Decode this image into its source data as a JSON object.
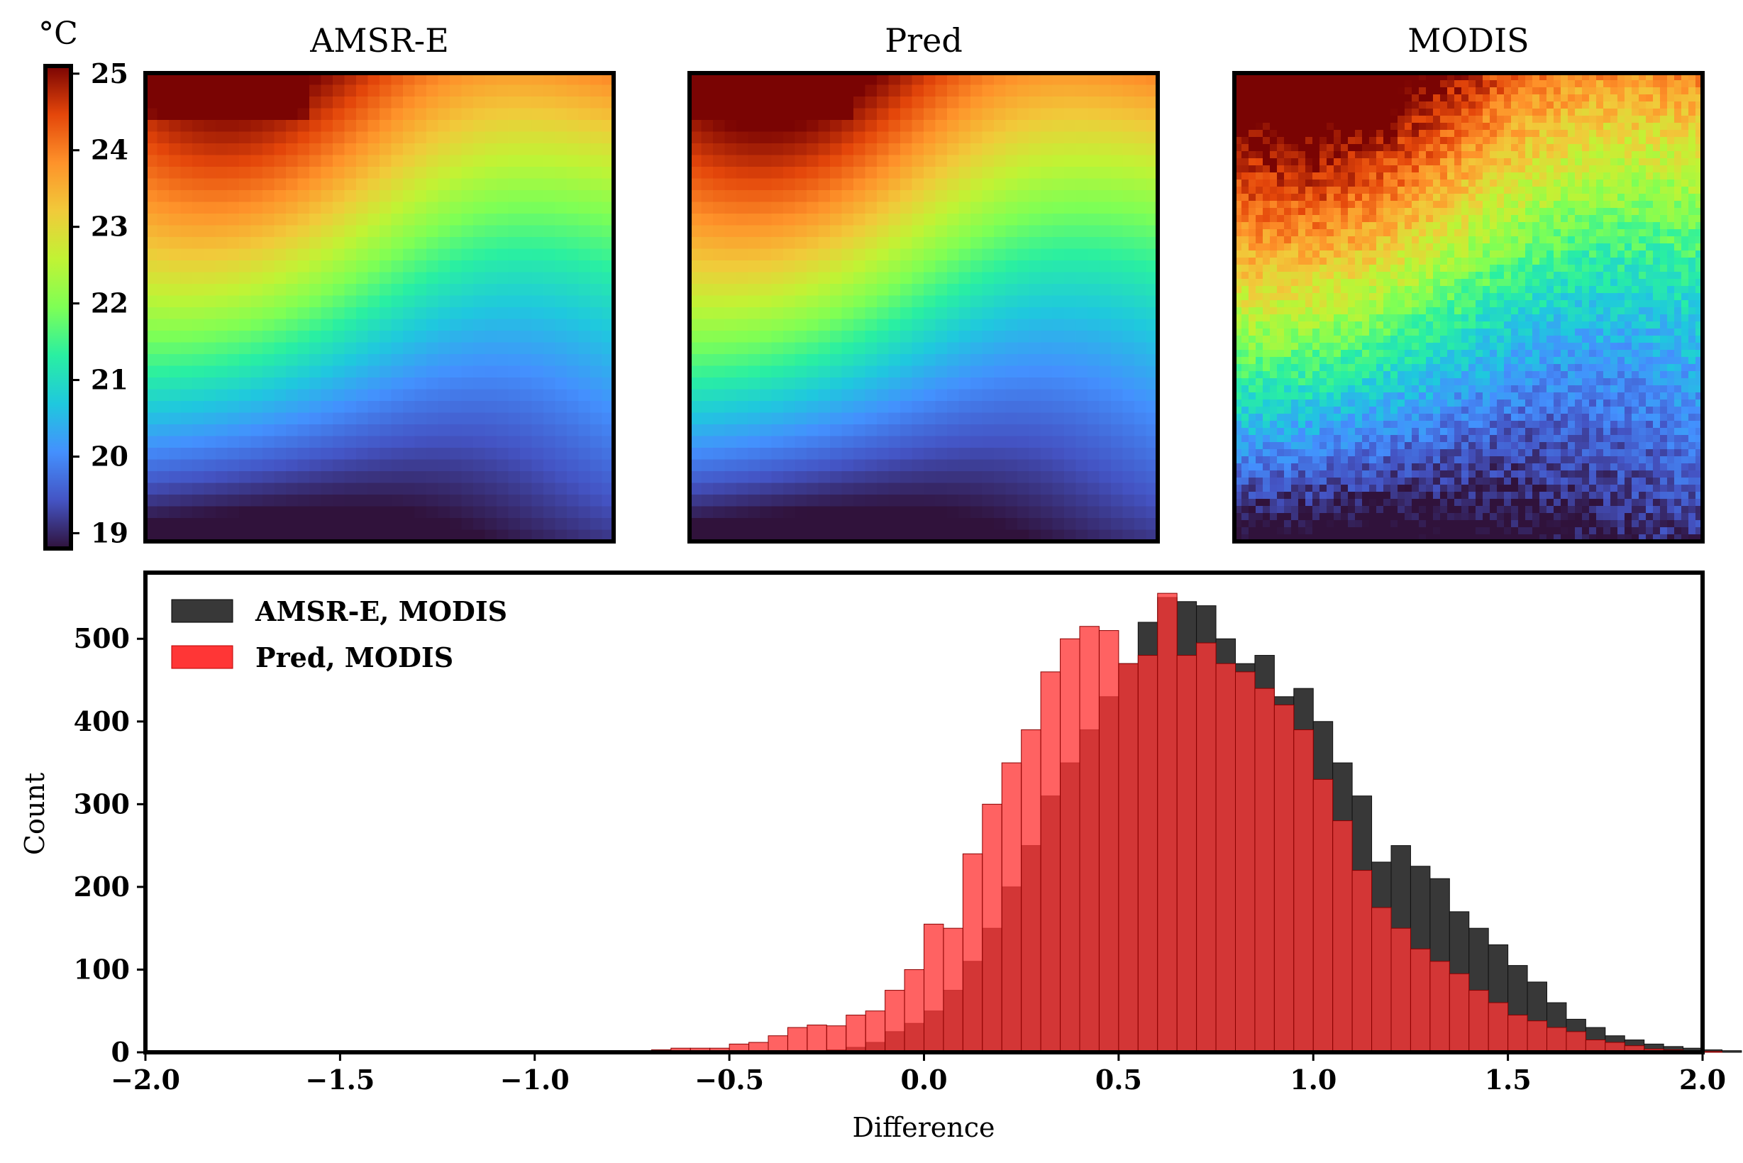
{
  "colorbar": {
    "unit": "°C",
    "ticks": [
      19,
      20,
      21,
      22,
      23,
      24,
      25
    ],
    "range": [
      18.8,
      25.1
    ],
    "colormap": "turbo"
  },
  "panels": [
    {
      "id": "amsr",
      "title": "AMSR-E",
      "noise": 0.0,
      "warm_boost": 0.0
    },
    {
      "id": "pred",
      "title": "Pred",
      "noise": 0.0,
      "warm_boost": 0.05
    },
    {
      "id": "modis",
      "title": "MODIS",
      "noise": 0.55,
      "warm_boost": 0.1
    }
  ],
  "chart_data": {
    "type": "bar",
    "subtype": "overlaid-histogram",
    "xlabel": "Difference",
    "ylabel": "Count",
    "xlim": [
      -2.0,
      2.0
    ],
    "ylim": [
      0,
      580
    ],
    "xticks": [
      "−2.0",
      "−1.5",
      "−1.0",
      "−0.5",
      "0.0",
      "0.5",
      "1.0",
      "1.5",
      "2.0"
    ],
    "xtick_values": [
      -2.0,
      -1.5,
      -1.0,
      -0.5,
      0.0,
      0.5,
      1.0,
      1.5,
      2.0
    ],
    "yticks": [
      0,
      100,
      200,
      300,
      400,
      500
    ],
    "legend": "top-left",
    "bin_width": 0.05,
    "series": [
      {
        "name": "AMSR-E, MODIS",
        "color": "#383838",
        "bin_start": -0.25,
        "values": [
          3,
          6,
          12,
          25,
          35,
          50,
          75,
          110,
          150,
          200,
          250,
          310,
          350,
          390,
          430,
          470,
          520,
          550,
          545,
          540,
          500,
          470,
          480,
          430,
          440,
          400,
          350,
          310,
          230,
          250,
          225,
          210,
          170,
          150,
          130,
          105,
          85,
          60,
          40,
          30,
          20,
          15,
          10,
          7,
          5,
          3,
          2
        ]
      },
      {
        "name": "Pred, MODIS",
        "color": "#ff3636",
        "bin_start": -0.75,
        "values": [
          1,
          3,
          5,
          5,
          5,
          10,
          12,
          20,
          30,
          33,
          32,
          45,
          50,
          75,
          100,
          155,
          150,
          240,
          300,
          350,
          390,
          460,
          500,
          515,
          510,
          470,
          480,
          555,
          480,
          495,
          470,
          460,
          440,
          420,
          390,
          330,
          280,
          220,
          175,
          150,
          125,
          110,
          95,
          75,
          60,
          45,
          38,
          30,
          25,
          15,
          12,
          8,
          4,
          3,
          2,
          1
        ]
      }
    ]
  }
}
